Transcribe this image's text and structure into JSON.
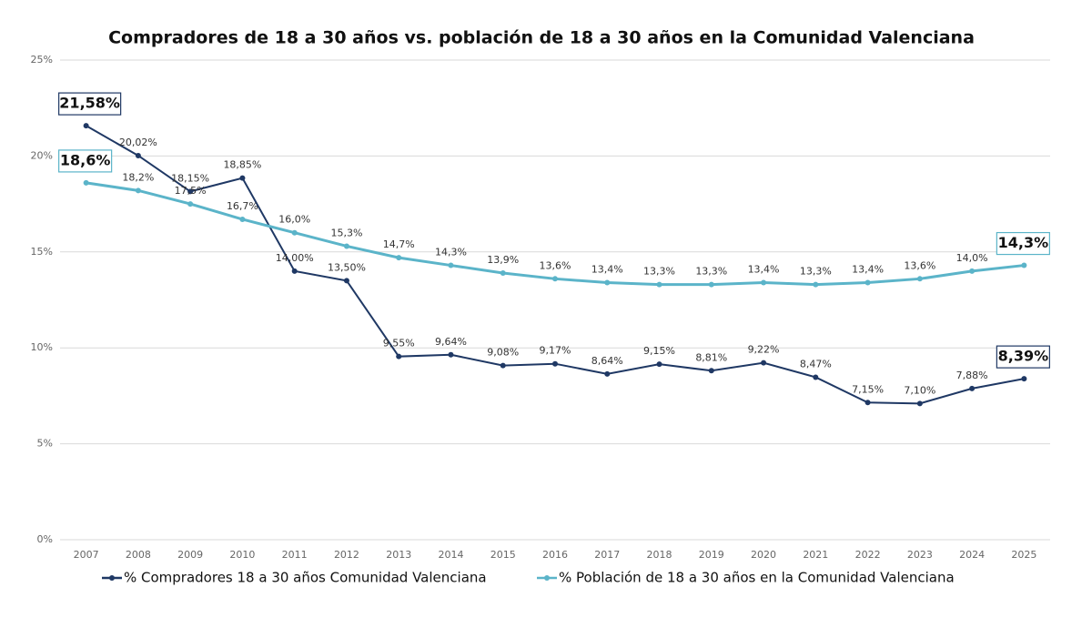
{
  "chart_data": {
    "type": "line",
    "title": "Compradores de 18 a 30 años vs. población de 18 a 30 años en la Comunidad Valenciana",
    "categories": [
      "2007",
      "2008",
      "2009",
      "2010",
      "2011",
      "2012",
      "2013",
      "2014",
      "2015",
      "2016",
      "2017",
      "2018",
      "2019",
      "2020",
      "2021",
      "2022",
      "2023",
      "2024",
      "2025"
    ],
    "series": [
      {
        "name": "% Compradores 18 a 30 años Comunidad Valenciana",
        "color": "#1f3864",
        "values": [
          21.58,
          20.02,
          18.15,
          18.85,
          14.0,
          13.5,
          9.55,
          9.64,
          9.08,
          9.17,
          8.64,
          9.15,
          8.81,
          9.22,
          8.47,
          7.15,
          7.1,
          7.88,
          8.39
        ],
        "value_labels": [
          "21,58%",
          "20,02%",
          "18,15%",
          "18,85%",
          "14,00%",
          "13,50%",
          "9,55%",
          "9,64%",
          "9,08%",
          "9,17%",
          "8,64%",
          "9,15%",
          "8,81%",
          "9,22%",
          "8,47%",
          "7,15%",
          "7,10%",
          "7,88%",
          "8,39%"
        ]
      },
      {
        "name": "% Población de 18 a 30 años en la Comunidad Valenciana",
        "color": "#5bb4c9",
        "values": [
          18.6,
          18.2,
          17.5,
          16.7,
          16.0,
          15.3,
          14.7,
          14.3,
          13.9,
          13.6,
          13.4,
          13.3,
          13.3,
          13.4,
          13.3,
          13.4,
          13.6,
          14.0,
          14.3
        ],
        "value_labels": [
          "18,6%",
          "18,2%",
          "17,5%",
          "16,7%",
          "16,0%",
          "15,3%",
          "14,7%",
          "14,3%",
          "13,9%",
          "13,6%",
          "13,4%",
          "13,3%",
          "13,3%",
          "13,4%",
          "13,3%",
          "13,4%",
          "13,6%",
          "14,0%",
          "14,3%"
        ]
      }
    ],
    "ylim": [
      0,
      25
    ],
    "yticks": [
      {
        "value": 0,
        "label": "0%"
      },
      {
        "value": 5,
        "label": "5%"
      },
      {
        "value": 10,
        "label": "10%"
      },
      {
        "value": 15,
        "label": "15%"
      },
      {
        "value": 20,
        "label": "20%"
      },
      {
        "value": 25,
        "label": "25%"
      }
    ],
    "grid": true,
    "legend": "bottom"
  }
}
